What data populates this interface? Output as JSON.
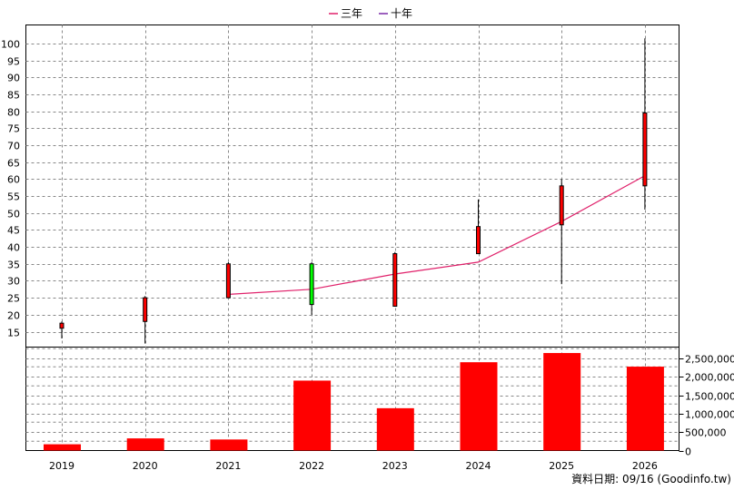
{
  "chart_data": [
    {
      "type": "candlestick",
      "legend": [
        {
          "name": "三年",
          "color": "#e0206a"
        },
        {
          "name": "十年",
          "color": "#7a2aa8"
        }
      ],
      "categories": [
        "2019",
        "2020",
        "2021",
        "2022",
        "2023",
        "2024",
        "2025",
        "2026"
      ],
      "ylim": [
        10,
        102
      ],
      "yticks": [
        15,
        20,
        25,
        30,
        35,
        40,
        45,
        50,
        55,
        60,
        65,
        70,
        75,
        80,
        85,
        90,
        95,
        100
      ],
      "candles": [
        {
          "year": "2019",
          "open": 16,
          "close": 17.5,
          "high": 18,
          "low": 13,
          "color": "#ff0000"
        },
        {
          "year": "2020",
          "open": 18,
          "close": 25,
          "high": 25.5,
          "low": 11.5,
          "color": "#ff0000"
        },
        {
          "year": "2021",
          "open": 25,
          "close": 35,
          "high": 35.5,
          "low": 25,
          "color": "#ff0000"
        },
        {
          "year": "2022",
          "open": 35,
          "close": 23,
          "high": 35.5,
          "low": 20,
          "color": "#00ff00"
        },
        {
          "year": "2023",
          "open": 22.5,
          "close": 38,
          "high": 38.5,
          "low": 22.5,
          "color": "#ff0000"
        },
        {
          "year": "2024",
          "open": 38,
          "close": 46,
          "high": 54,
          "low": 38,
          "color": "#ff0000"
        },
        {
          "year": "2025",
          "open": 46.5,
          "close": 58,
          "high": 60,
          "low": 29,
          "color": "#ff0000"
        },
        {
          "year": "2026",
          "open": 58,
          "close": 79.5,
          "high": 101.5,
          "low": 51,
          "color": "#ff0000"
        }
      ],
      "three_year_line": [
        {
          "year": "2021",
          "value": 26
        },
        {
          "year": "2022",
          "value": 27.5
        },
        {
          "year": "2023",
          "value": 32
        },
        {
          "year": "2024",
          "value": 35.5
        },
        {
          "year": "2025",
          "value": 47.5
        },
        {
          "year": "2026",
          "value": 61
        }
      ],
      "grid": true
    },
    {
      "type": "bar",
      "categories": [
        "2019",
        "2020",
        "2021",
        "2022",
        "2023",
        "2024",
        "2025",
        "2026"
      ],
      "values": [
        170000,
        330000,
        300000,
        1900000,
        1150000,
        2400000,
        2650000,
        2280000
      ],
      "ylim": [
        0,
        2750000
      ],
      "yticks": [
        "0",
        "500,000",
        "1,000,000",
        "1,500,000",
        "2,000,000",
        "2,500,000"
      ],
      "ytick_values": [
        0,
        500000,
        1000000,
        1500000,
        2000000,
        2500000
      ],
      "color": "#ff0000",
      "grid": true
    }
  ],
  "footer_text": "資料日期: 09/16  (Goodinfo.tw)"
}
